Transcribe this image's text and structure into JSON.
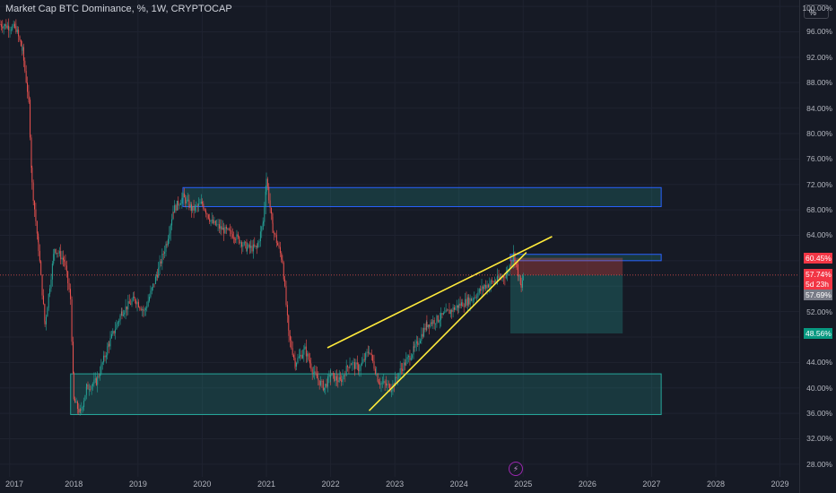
{
  "header": {
    "title": "Market Cap BTC Dominance, %, 1W, CRYPTOCAP",
    "scale_button": "%"
  },
  "colors": {
    "background": "#161a25",
    "up": "#26a69a",
    "down": "#ef5350",
    "trendline": "#ffeb3b",
    "zone_fill": "rgba(38,166,154,0.22)",
    "zone_border_green": "#26a69a",
    "zone_border_blue": "#2962ff",
    "price_badge": "#f23645",
    "target_badge": "#089981",
    "current_badge": "#787b86"
  },
  "chart_data": {
    "type": "candlestick",
    "title": "Market Cap BTC Dominance, %, 1W, CRYPTOCAP",
    "y_unit": "%",
    "ylim": [
      26,
      101
    ],
    "xlim": [
      2016.85,
      2029.3
    ],
    "y_ticks": [
      "100.00%",
      "96.00%",
      "92.00%",
      "88.00%",
      "84.00%",
      "80.00%",
      "76.00%",
      "72.00%",
      "68.00%",
      "64.00%",
      "56.00%",
      "52.00%",
      "44.00%",
      "40.00%",
      "36.00%",
      "32.00%",
      "28.00%"
    ],
    "x_ticks": [
      "2017",
      "2018",
      "2019",
      "2020",
      "2021",
      "2022",
      "2023",
      "2024",
      "2025",
      "2026",
      "2027",
      "2028",
      "2029"
    ],
    "price_path": [
      [
        2016.85,
        97.2
      ],
      [
        2017.1,
        96.5
      ],
      [
        2017.2,
        93
      ],
      [
        2017.3,
        85
      ],
      [
        2017.35,
        72
      ],
      [
        2017.45,
        62
      ],
      [
        2017.55,
        50
      ],
      [
        2017.7,
        62
      ],
      [
        2017.85,
        60
      ],
      [
        2017.95,
        54
      ],
      [
        2018.0,
        38
      ],
      [
        2018.1,
        36
      ],
      [
        2018.2,
        40
      ],
      [
        2018.35,
        41
      ],
      [
        2018.55,
        47
      ],
      [
        2018.75,
        52
      ],
      [
        2018.95,
        54
      ],
      [
        2019.1,
        52
      ],
      [
        2019.3,
        58
      ],
      [
        2019.45,
        63
      ],
      [
        2019.55,
        68
      ],
      [
        2019.7,
        70
      ],
      [
        2019.85,
        68
      ],
      [
        2020.0,
        69
      ],
      [
        2020.15,
        66
      ],
      [
        2020.3,
        65
      ],
      [
        2020.5,
        64
      ],
      [
        2020.7,
        62
      ],
      [
        2020.85,
        62
      ],
      [
        2020.95,
        66
      ],
      [
        2021.0,
        73
      ],
      [
        2021.1,
        65
      ],
      [
        2021.25,
        60
      ],
      [
        2021.35,
        48
      ],
      [
        2021.45,
        44
      ],
      [
        2021.6,
        46
      ],
      [
        2021.75,
        42
      ],
      [
        2021.9,
        40
      ],
      [
        2022.0,
        42
      ],
      [
        2022.15,
        41
      ],
      [
        2022.3,
        44
      ],
      [
        2022.45,
        43
      ],
      [
        2022.6,
        46
      ],
      [
        2022.75,
        41
      ],
      [
        2022.95,
        40
      ],
      [
        2023.1,
        43
      ],
      [
        2023.3,
        46
      ],
      [
        2023.5,
        50
      ],
      [
        2023.7,
        51
      ],
      [
        2023.85,
        52
      ],
      [
        2024.0,
        53
      ],
      [
        2024.2,
        54
      ],
      [
        2024.4,
        56
      ],
      [
        2024.6,
        57
      ],
      [
        2024.75,
        58
      ],
      [
        2024.85,
        61
      ],
      [
        2024.9,
        59
      ],
      [
        2024.97,
        55.5
      ],
      [
        2025.0,
        57.7
      ]
    ],
    "zones": [
      {
        "x": [
          2019.7,
          2027.15
        ],
        "y": [
          68.5,
          71.5
        ],
        "border": "blue"
      },
      {
        "x": [
          2017.95,
          2027.15
        ],
        "y": [
          35.8,
          42.2
        ],
        "border": "green"
      },
      {
        "x": [
          2024.8,
          2027.15
        ],
        "y": [
          60.0,
          61.0
        ],
        "border": "blue"
      }
    ],
    "position": {
      "x": [
        2024.8,
        2026.55
      ],
      "entry": 57.74,
      "stop": 60.45,
      "target": 48.56
    },
    "trendlines": [
      {
        "x": [
          2021.95,
          2025.45
        ],
        "y": [
          46.3,
          63.8
        ]
      },
      {
        "x": [
          2022.6,
          2025.05
        ],
        "y": [
          36.4,
          61.3
        ]
      }
    ],
    "badges": {
      "stop": "60.45%",
      "entry": "57.74%",
      "countdown": "5d 23h",
      "current": "57.69%",
      "target": "48.56%"
    }
  }
}
